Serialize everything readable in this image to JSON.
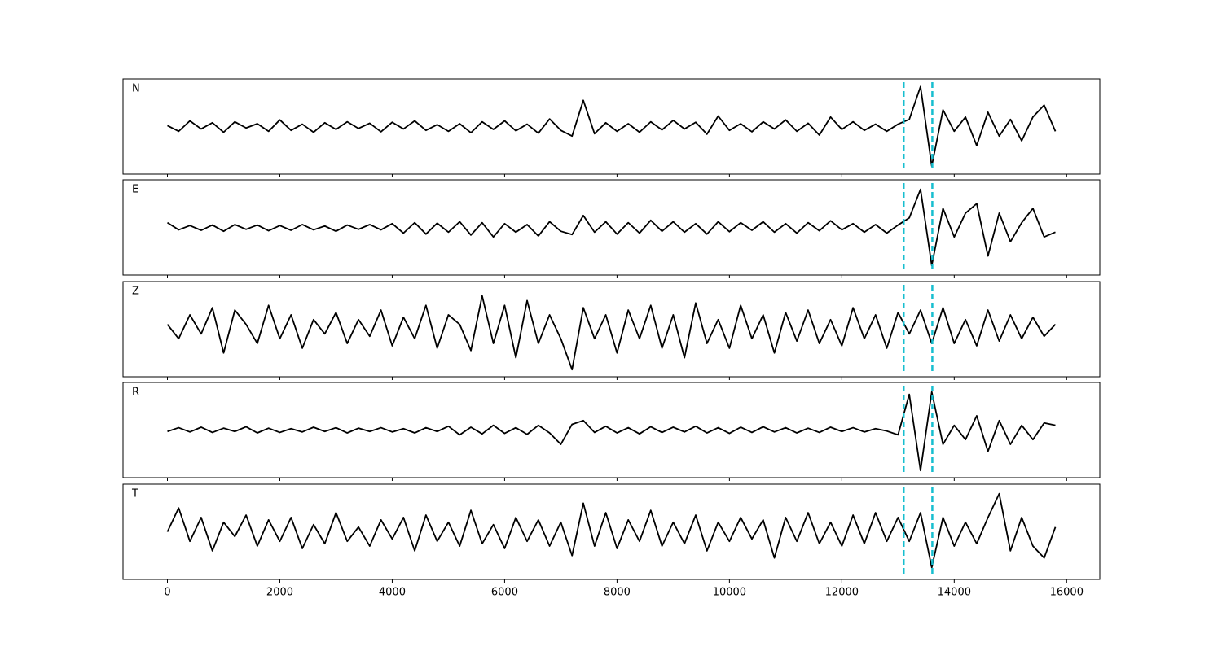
{
  "chart_data": {
    "type": "line",
    "x": [
      0,
      200,
      400,
      600,
      800,
      1000,
      1200,
      1400,
      1600,
      1800,
      2000,
      2200,
      2400,
      2600,
      2800,
      3000,
      3200,
      3400,
      3600,
      3800,
      4000,
      4200,
      4400,
      4600,
      4800,
      5000,
      5200,
      5400,
      5600,
      5800,
      6000,
      6200,
      6400,
      6600,
      6800,
      7000,
      7200,
      7400,
      7600,
      7800,
      8000,
      8200,
      8400,
      8600,
      8800,
      9000,
      9200,
      9400,
      9600,
      9800,
      10000,
      10200,
      10400,
      10600,
      10800,
      11000,
      11200,
      11400,
      11600,
      11800,
      12000,
      12200,
      12400,
      12600,
      12800,
      13000,
      13200,
      13400,
      13600,
      13800,
      14000,
      14200,
      14400,
      14600,
      14800,
      15000,
      15200,
      15400,
      15600,
      15800
    ],
    "xlim": [
      -790,
      16590
    ],
    "xticks": [
      0,
      2000,
      4000,
      6000,
      8000,
      10000,
      12000,
      14000,
      16000
    ],
    "ylim": [
      -1,
      1
    ],
    "vlines": [
      13100,
      13610
    ],
    "vline_color": "#17becf",
    "series": [
      {
        "name": "N",
        "color": "#000000",
        "values": [
          0.02,
          -0.1,
          0.12,
          -0.05,
          0.08,
          -0.12,
          0.1,
          -0.03,
          0.06,
          -0.1,
          0.14,
          -0.08,
          0.05,
          -0.12,
          0.08,
          -0.06,
          0.1,
          -0.04,
          0.07,
          -0.11,
          0.09,
          -0.05,
          0.12,
          -0.08,
          0.04,
          -0.1,
          0.06,
          -0.13,
          0.1,
          -0.06,
          0.12,
          -0.09,
          0.05,
          -0.14,
          0.16,
          -0.08,
          -0.2,
          0.55,
          -0.15,
          0.08,
          -0.1,
          0.06,
          -0.12,
          0.1,
          -0.07,
          0.13,
          -0.05,
          0.09,
          -0.16,
          0.22,
          -0.08,
          0.06,
          -0.11,
          0.1,
          -0.05,
          0.14,
          -0.1,
          0.07,
          -0.18,
          0.2,
          -0.06,
          0.1,
          -0.08,
          0.05,
          -0.1,
          0.05,
          0.15,
          0.84,
          -0.83,
          0.35,
          -0.1,
          0.2,
          -0.4,
          0.3,
          -0.2,
          0.15,
          -0.3,
          0.2,
          0.45,
          -0.1
        ]
      },
      {
        "name": "E",
        "color": "#000000",
        "values": [
          0.1,
          -0.05,
          0.04,
          -0.06,
          0.05,
          -0.08,
          0.06,
          -0.04,
          0.05,
          -0.07,
          0.04,
          -0.06,
          0.06,
          -0.05,
          0.03,
          -0.08,
          0.05,
          -0.04,
          0.06,
          -0.05,
          0.08,
          -0.12,
          0.1,
          -0.14,
          0.09,
          -0.1,
          0.12,
          -0.16,
          0.1,
          -0.2,
          0.08,
          -0.1,
          0.06,
          -0.18,
          0.12,
          -0.08,
          -0.15,
          0.25,
          -0.1,
          0.12,
          -0.14,
          0.1,
          -0.12,
          0.15,
          -0.08,
          0.12,
          -0.1,
          0.08,
          -0.14,
          0.12,
          -0.09,
          0.1,
          -0.06,
          0.12,
          -0.1,
          0.08,
          -0.12,
          0.1,
          -0.07,
          0.14,
          -0.05,
          0.08,
          -0.1,
          0.06,
          -0.12,
          0.05,
          0.2,
          0.8,
          -0.8,
          0.4,
          -0.2,
          0.3,
          0.5,
          -0.6,
          0.3,
          -0.3,
          0.1,
          0.4,
          -0.2,
          -0.1
        ]
      },
      {
        "name": "Z",
        "color": "#000000",
        "values": [
          0.1,
          -0.2,
          0.3,
          -0.1,
          0.45,
          -0.5,
          0.4,
          0.1,
          -0.3,
          0.5,
          -0.2,
          0.3,
          -0.4,
          0.2,
          -0.1,
          0.35,
          -0.3,
          0.2,
          -0.15,
          0.4,
          -0.35,
          0.25,
          -0.2,
          0.5,
          -0.4,
          0.3,
          0.1,
          -0.45,
          0.7,
          -0.3,
          0.5,
          -0.6,
          0.6,
          -0.3,
          0.3,
          -0.2,
          -0.85,
          0.45,
          -0.2,
          0.3,
          -0.5,
          0.4,
          -0.2,
          0.5,
          -0.4,
          0.3,
          -0.6,
          0.55,
          -0.3,
          0.2,
          -0.4,
          0.5,
          -0.2,
          0.3,
          -0.5,
          0.35,
          -0.25,
          0.4,
          -0.3,
          0.2,
          -0.35,
          0.45,
          -0.2,
          0.3,
          -0.4,
          0.35,
          -0.1,
          0.4,
          -0.3,
          0.45,
          -0.3,
          0.2,
          -0.35,
          0.4,
          -0.25,
          0.3,
          -0.2,
          0.25,
          -0.15,
          0.1
        ]
      },
      {
        "name": "R",
        "color": "#000000",
        "values": [
          -0.03,
          0.05,
          -0.04,
          0.06,
          -0.05,
          0.04,
          -0.03,
          0.07,
          -0.06,
          0.04,
          -0.05,
          0.03,
          -0.04,
          0.06,
          -0.03,
          0.05,
          -0.06,
          0.04,
          -0.03,
          0.05,
          -0.04,
          0.03,
          -0.06,
          0.05,
          -0.03,
          0.08,
          -0.1,
          0.06,
          -0.08,
          0.1,
          -0.07,
          0.05,
          -0.09,
          0.1,
          -0.06,
          -0.3,
          0.12,
          0.2,
          -0.05,
          0.08,
          -0.06,
          0.05,
          -0.08,
          0.07,
          -0.05,
          0.06,
          -0.04,
          0.08,
          -0.06,
          0.05,
          -0.07,
          0.06,
          -0.05,
          0.07,
          -0.04,
          0.05,
          -0.06,
          0.04,
          -0.05,
          0.06,
          -0.03,
          0.05,
          -0.04,
          0.03,
          -0.02,
          -0.1,
          0.75,
          -0.85,
          0.8,
          -0.3,
          0.1,
          -0.2,
          0.3,
          -0.45,
          0.2,
          -0.3,
          0.1,
          -0.2,
          0.15,
          0.1
        ]
      },
      {
        "name": "T",
        "color": "#000000",
        "values": [
          0.0,
          0.5,
          -0.2,
          0.3,
          -0.4,
          0.2,
          -0.1,
          0.35,
          -0.3,
          0.25,
          -0.2,
          0.3,
          -0.35,
          0.15,
          -0.25,
          0.4,
          -0.2,
          0.1,
          -0.3,
          0.25,
          -0.15,
          0.3,
          -0.4,
          0.35,
          -0.2,
          0.2,
          -0.3,
          0.45,
          -0.25,
          0.15,
          -0.35,
          0.3,
          -0.2,
          0.25,
          -0.3,
          0.2,
          -0.5,
          0.6,
          -0.3,
          0.4,
          -0.35,
          0.25,
          -0.2,
          0.45,
          -0.3,
          0.2,
          -0.25,
          0.35,
          -0.4,
          0.2,
          -0.2,
          0.3,
          -0.15,
          0.25,
          -0.55,
          0.3,
          -0.2,
          0.4,
          -0.25,
          0.2,
          -0.3,
          0.35,
          -0.25,
          0.4,
          -0.2,
          0.3,
          -0.2,
          0.4,
          -0.75,
          0.3,
          -0.3,
          0.2,
          -0.25,
          0.3,
          0.8,
          -0.4,
          0.3,
          -0.3,
          -0.55,
          0.1
        ]
      }
    ]
  }
}
